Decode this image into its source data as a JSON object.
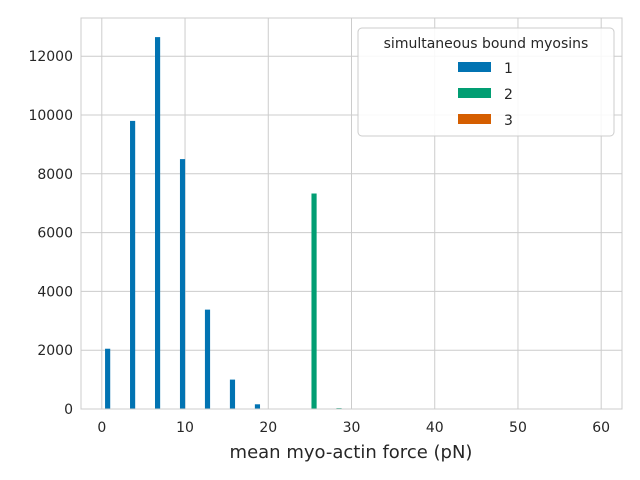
{
  "chart_data": {
    "type": "bar",
    "title": "",
    "xlabel": "mean myo-actin force (pN)",
    "ylabel": "",
    "xlim": [
      -2.5,
      62.5
    ],
    "ylim": [
      0,
      13300
    ],
    "xticks": [
      0,
      10,
      20,
      30,
      40,
      50,
      60
    ],
    "yticks": [
      0,
      2000,
      4000,
      6000,
      8000,
      10000,
      12000
    ],
    "grid": true,
    "legend": {
      "title": "simultaneous bound myosins",
      "position": "top-right"
    },
    "series": [
      {
        "name": "1",
        "color": "#0173b2",
        "x": [
          0.7,
          3.7,
          6.7,
          9.7,
          12.7,
          15.7,
          18.7
        ],
        "values": [
          2050,
          9800,
          12650,
          8500,
          3380,
          1000,
          160
        ]
      },
      {
        "name": "2",
        "color": "#029e73",
        "x": [
          25.5,
          28.5
        ],
        "values": [
          7330,
          30
        ]
      },
      {
        "name": "3",
        "color": "#d55e00",
        "x": [],
        "values": []
      }
    ]
  }
}
